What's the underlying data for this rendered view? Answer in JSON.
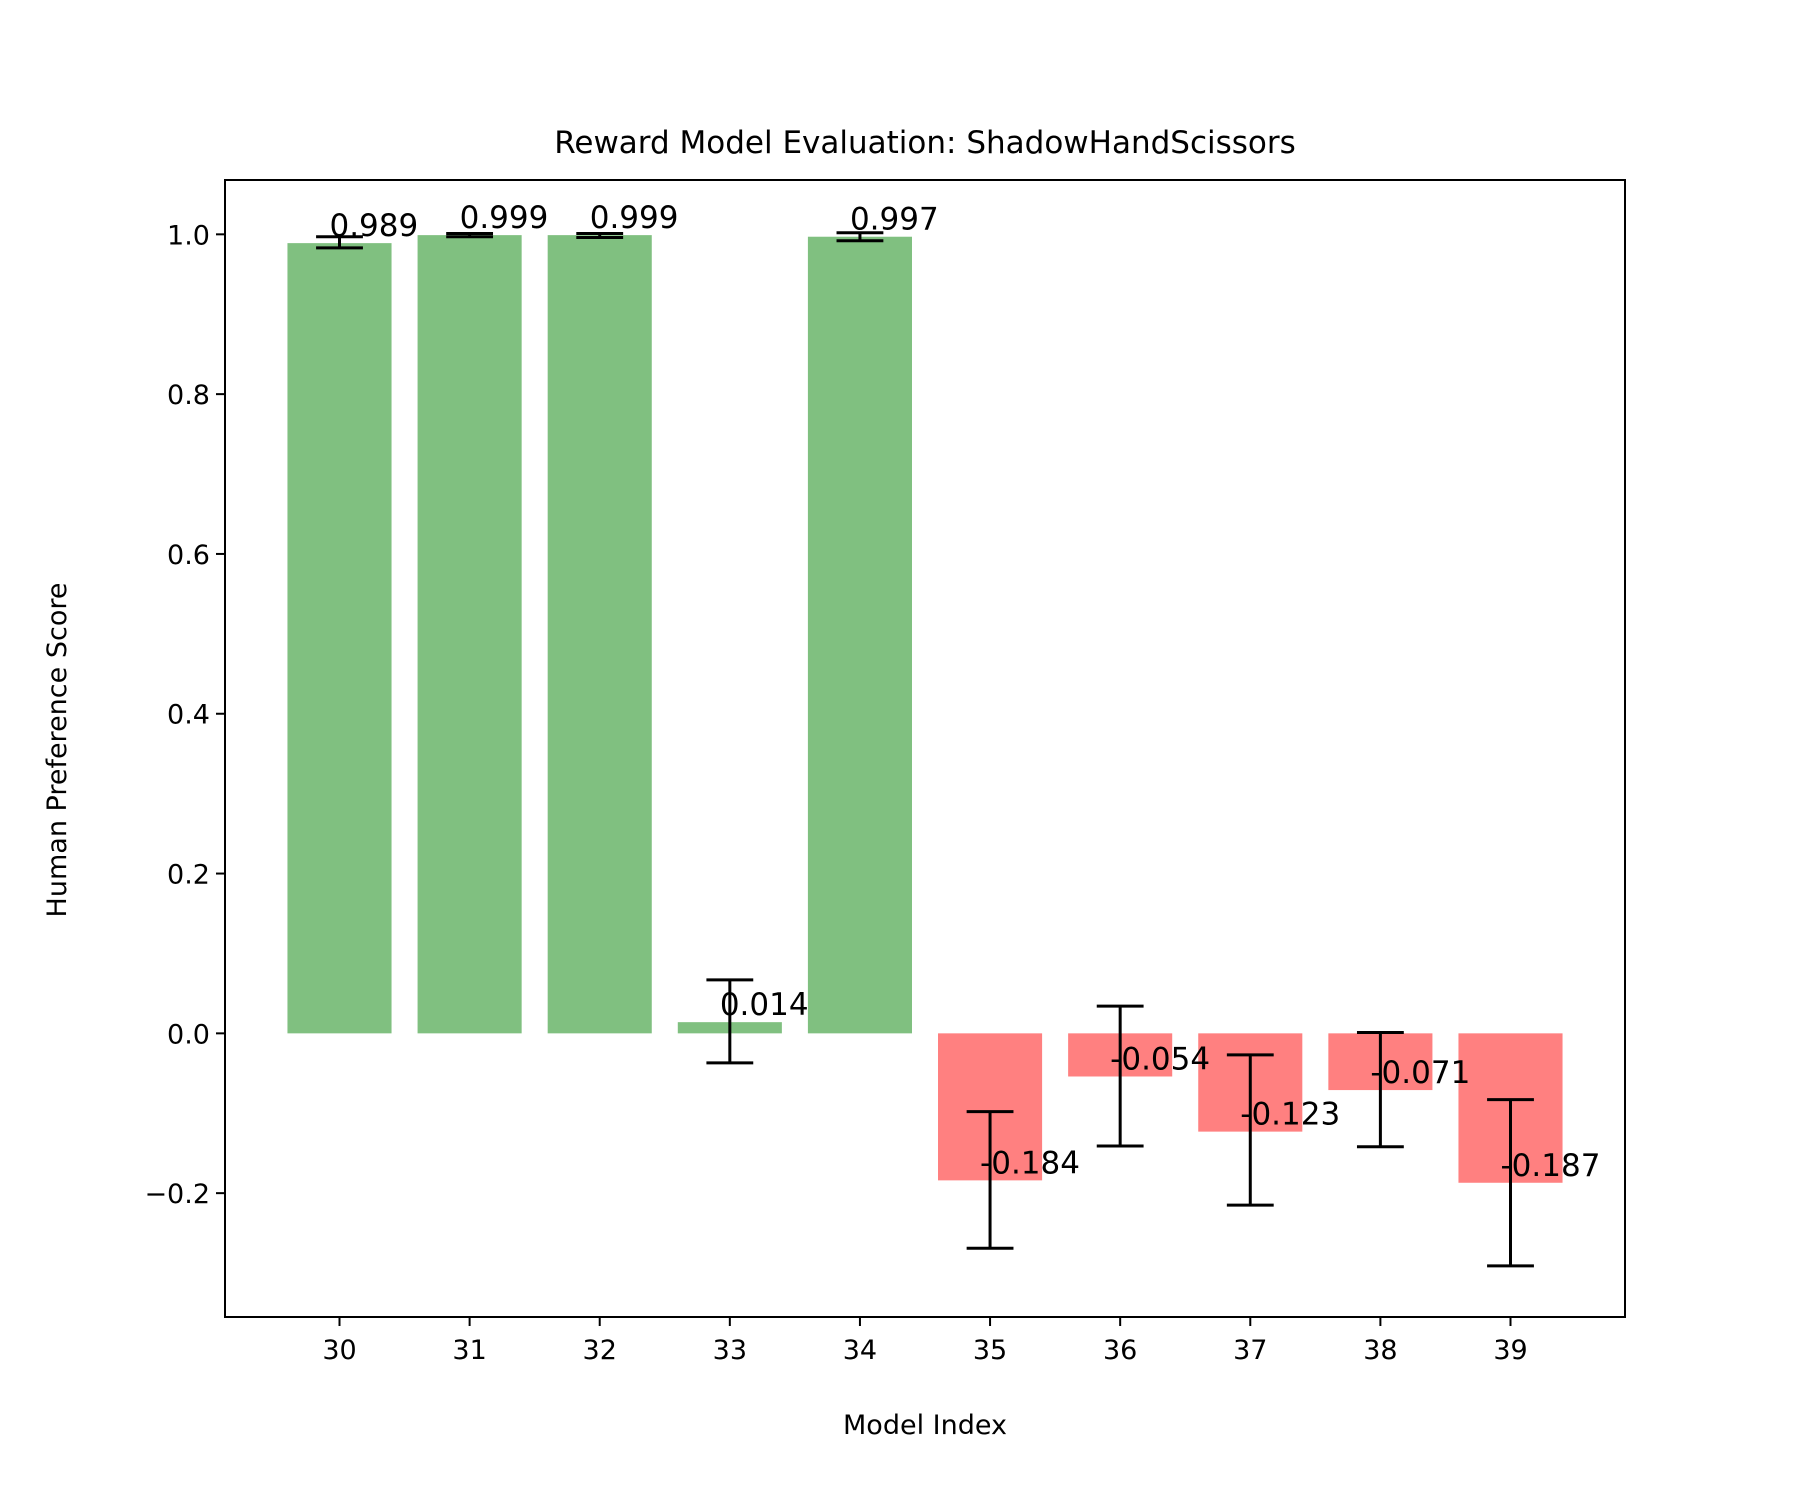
{
  "chart_data": {
    "type": "bar",
    "title": "Reward Model Evaluation: ShadowHandScissors",
    "xlabel": "Model Index",
    "ylabel": "Human Preference Score",
    "categories": [
      "30",
      "31",
      "32",
      "33",
      "34",
      "35",
      "36",
      "37",
      "38",
      "39"
    ],
    "values": [
      0.989,
      0.999,
      0.999,
      0.014,
      0.997,
      -0.184,
      -0.054,
      -0.123,
      -0.071,
      -0.187
    ],
    "value_labels": [
      "0.989",
      "0.999",
      "0.999",
      "0.014",
      "0.997",
      "-0.184",
      "-0.054",
      "-0.123",
      "-0.071",
      "-0.187"
    ],
    "error_bars": [
      [
        0.983,
        0.997
      ],
      [
        0.997,
        1.001
      ],
      [
        0.996,
        1.001
      ],
      [
        -0.037,
        0.067
      ],
      [
        0.992,
        1.002
      ],
      [
        -0.269,
        -0.098
      ],
      [
        -0.141,
        0.034
      ],
      [
        -0.215,
        -0.027
      ],
      [
        -0.142,
        0.001
      ],
      [
        -0.291,
        -0.083
      ]
    ],
    "yticks": [
      -0.2,
      0.0,
      0.2,
      0.4,
      0.6,
      0.8,
      1.0
    ],
    "ytick_labels": [
      "−0.2",
      "0.0",
      "0.2",
      "0.4",
      "0.6",
      "0.8",
      "1.0"
    ],
    "ylim": [
      -0.355,
      1.068
    ],
    "xlim": [
      29.12,
      39.88
    ],
    "grid": false,
    "colors": {
      "positive": "#80c080",
      "negative": "#ff8080",
      "error_bar": "#000000",
      "axes": "#000000"
    }
  }
}
